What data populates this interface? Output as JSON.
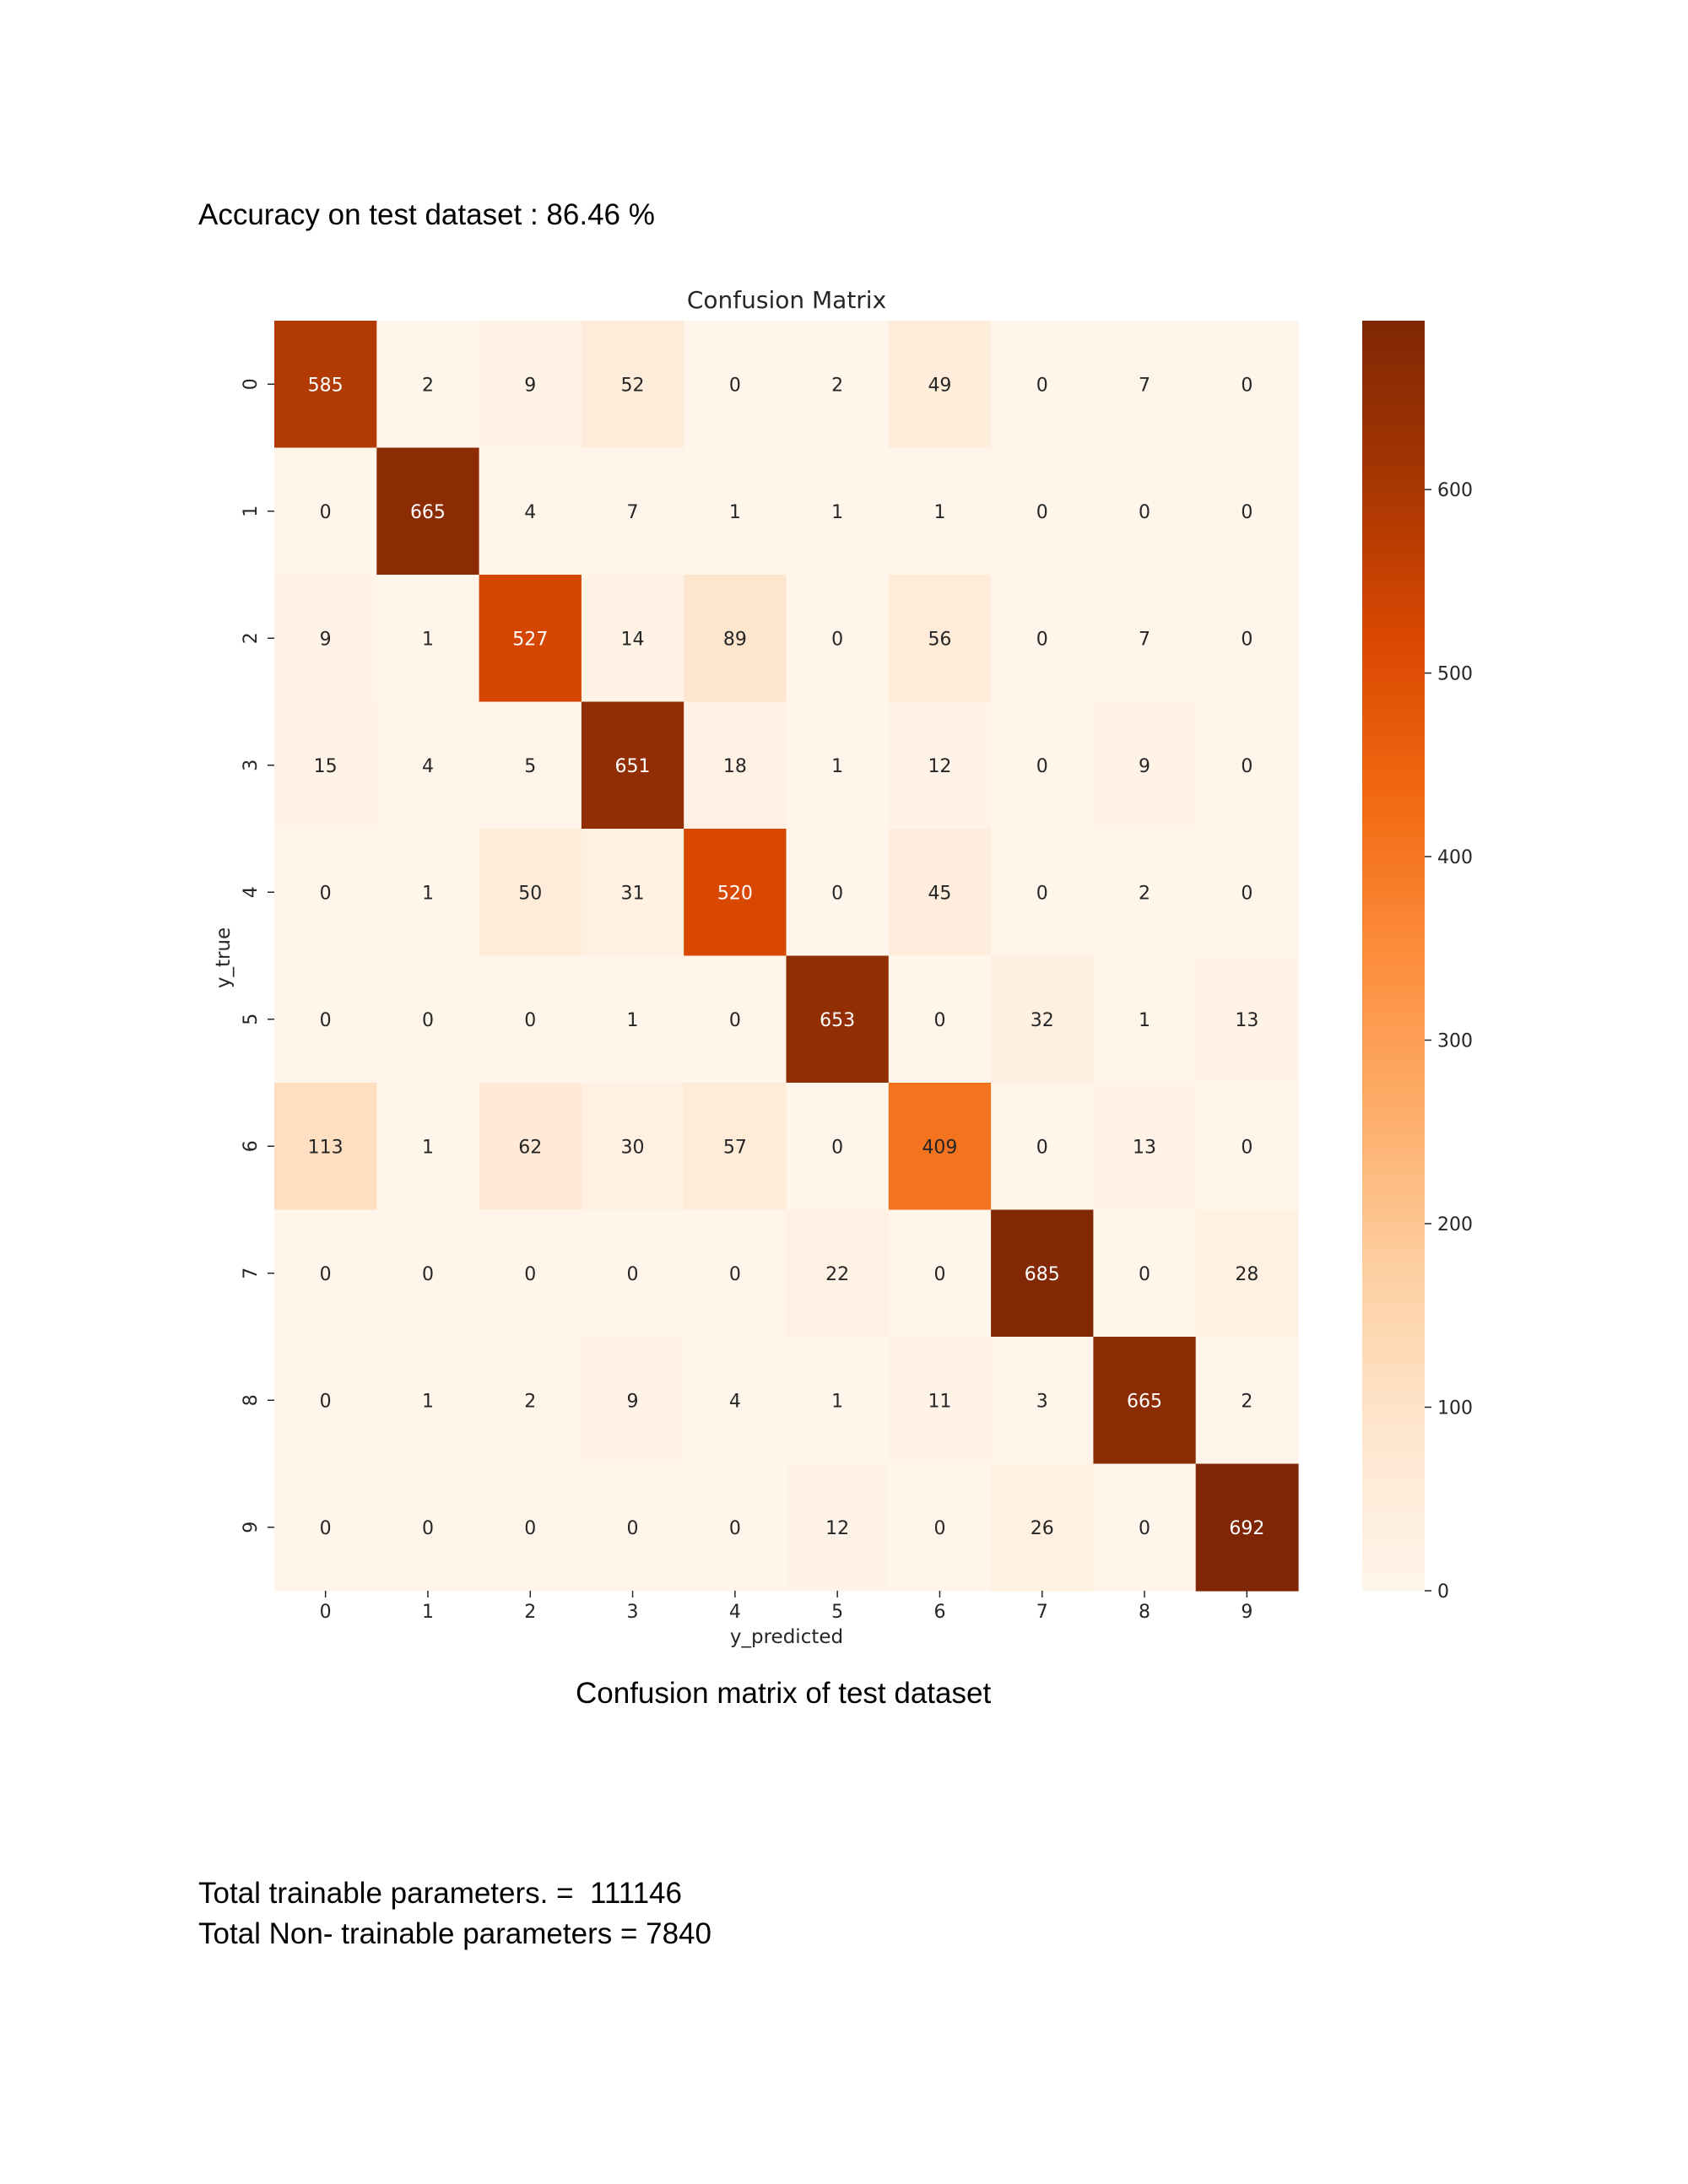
{
  "document": {
    "accuracy_text": "Accuracy on test dataset : 86.46 %",
    "caption": "Confusion matrix of test dataset",
    "trainable_params_text": "Total trainable parameters. =  111146",
    "non_trainable_params_text": "Total Non- trainable parameters = 7840"
  },
  "chart_data": {
    "type": "heatmap",
    "title": "Confusion Matrix",
    "xlabel": "y_predicted",
    "ylabel": "y_true",
    "x_categories": [
      "0",
      "1",
      "2",
      "3",
      "4",
      "5",
      "6",
      "7",
      "8",
      "9"
    ],
    "y_categories": [
      "0",
      "1",
      "2",
      "3",
      "4",
      "5",
      "6",
      "7",
      "8",
      "9"
    ],
    "values": [
      [
        585,
        2,
        9,
        52,
        0,
        2,
        49,
        0,
        7,
        0
      ],
      [
        0,
        665,
        4,
        7,
        1,
        1,
        1,
        0,
        0,
        0
      ],
      [
        9,
        1,
        527,
        14,
        89,
        0,
        56,
        0,
        7,
        0
      ],
      [
        15,
        4,
        5,
        651,
        18,
        1,
        12,
        0,
        9,
        0
      ],
      [
        0,
        1,
        50,
        31,
        520,
        0,
        45,
        0,
        2,
        0
      ],
      [
        0,
        0,
        0,
        1,
        0,
        653,
        0,
        32,
        1,
        13
      ],
      [
        113,
        1,
        62,
        30,
        57,
        0,
        409,
        0,
        13,
        0
      ],
      [
        0,
        0,
        0,
        0,
        0,
        22,
        0,
        685,
        0,
        28
      ],
      [
        0,
        1,
        2,
        9,
        4,
        1,
        11,
        3,
        665,
        2
      ],
      [
        0,
        0,
        0,
        0,
        0,
        12,
        0,
        26,
        0,
        692
      ]
    ],
    "colormap": "Oranges",
    "colorbar_range": [
      0,
      692
    ],
    "colorbar_ticks": [
      0,
      100,
      200,
      300,
      400,
      500,
      600
    ],
    "legend": "colorbar-right"
  }
}
